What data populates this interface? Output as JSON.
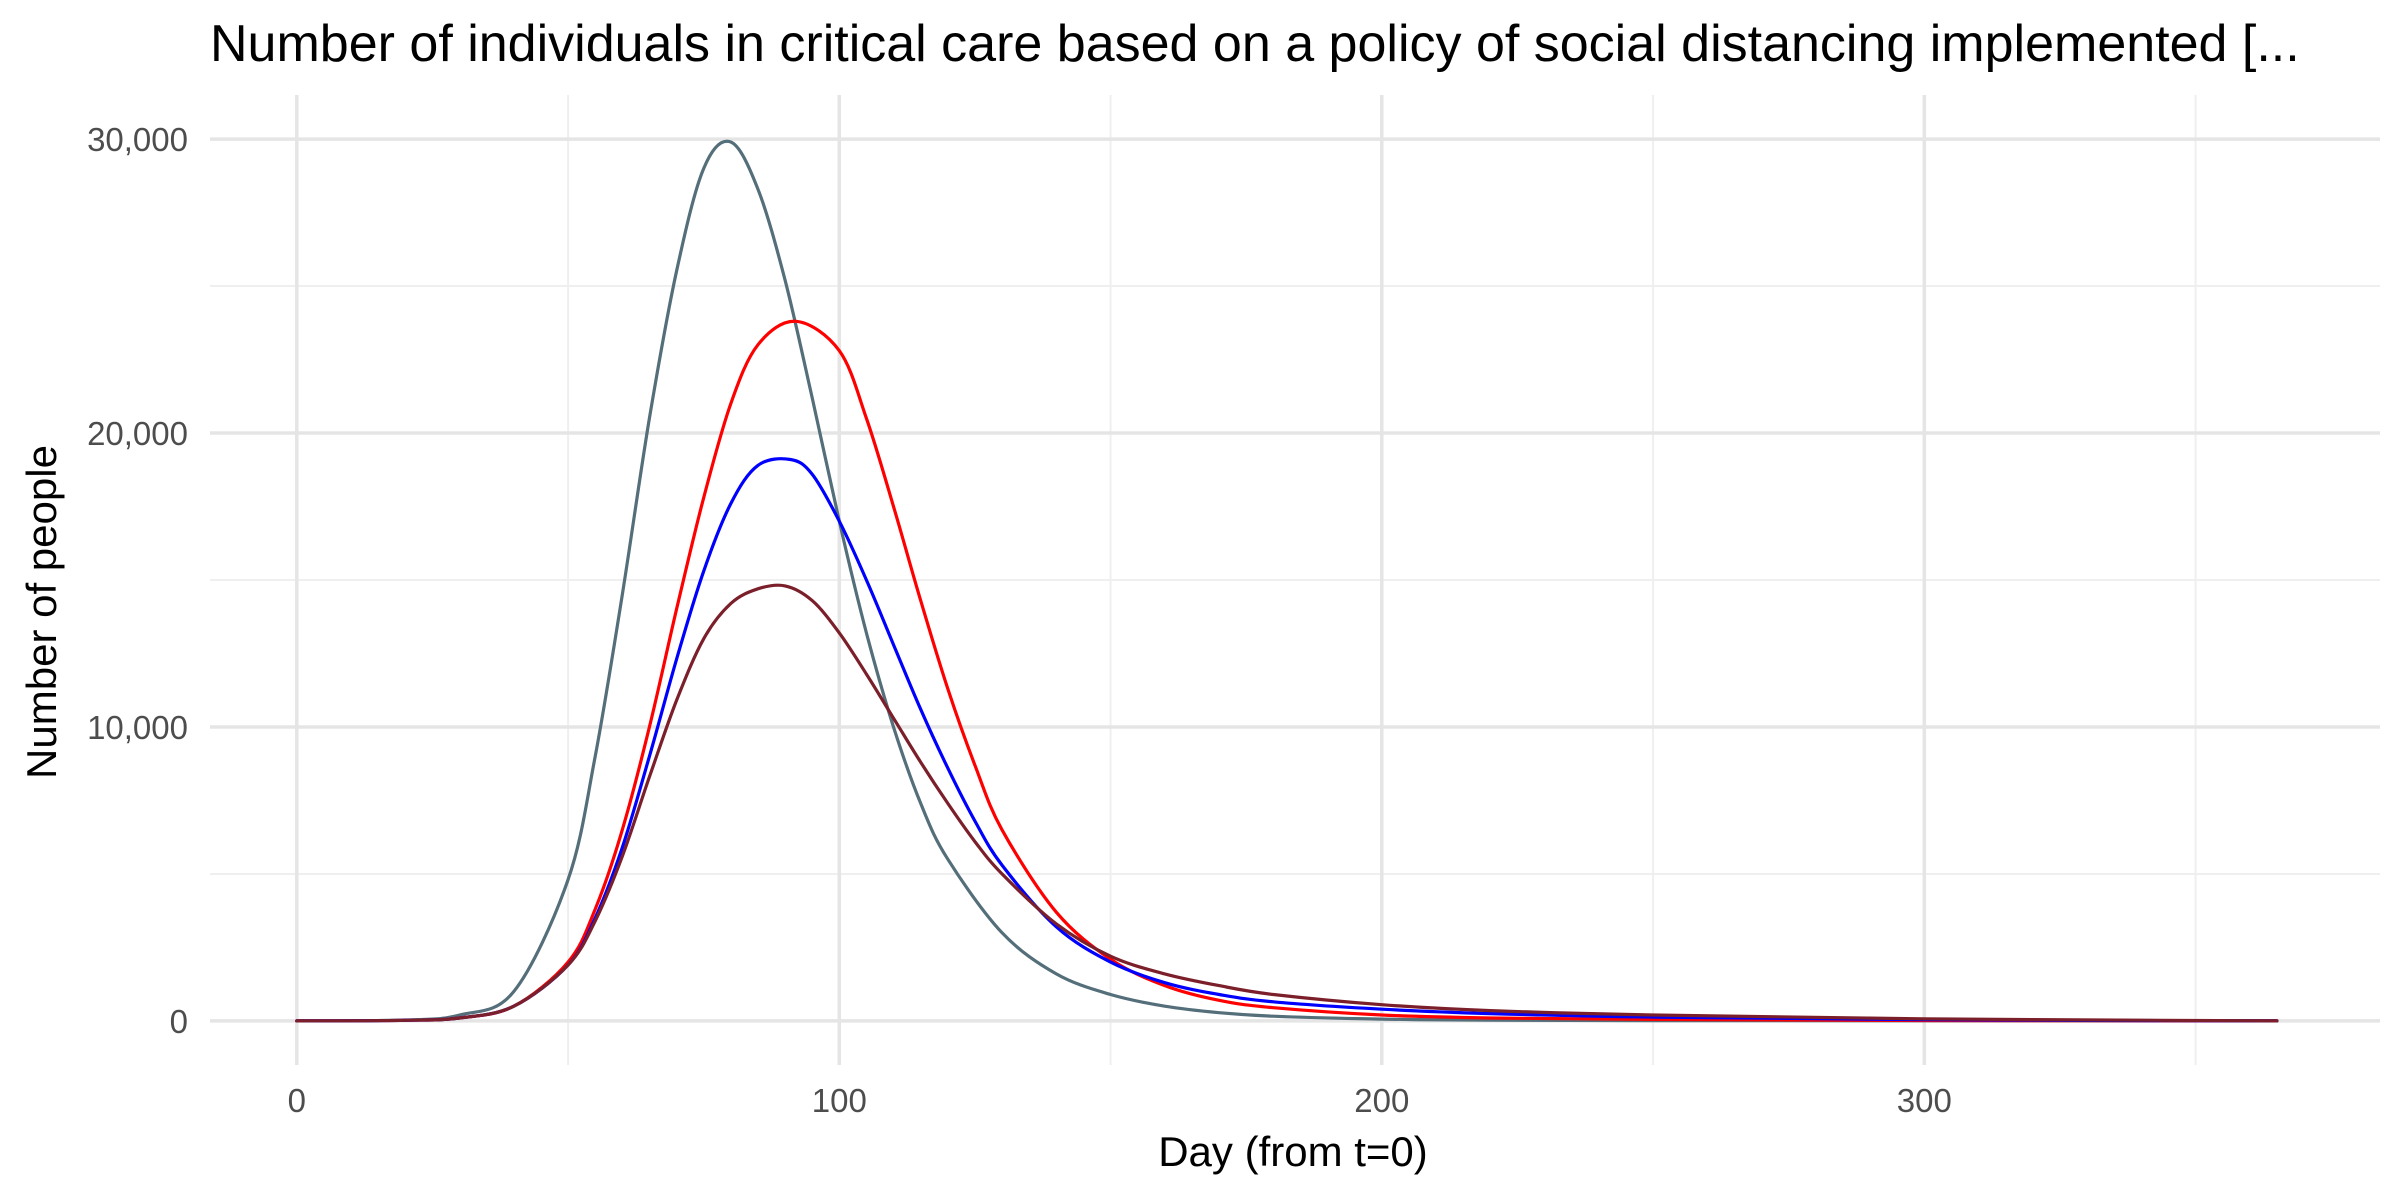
{
  "chart_data": {
    "type": "line",
    "title": "Number of individuals in critical care based on a policy of social distancing implemented [...",
    "xlabel": "Day (from t=0)",
    "ylabel": "Number of people",
    "xlim": [
      -16,
      384
    ],
    "ylim": [
      -1500,
      31500
    ],
    "x_ticks": [
      0,
      100,
      200,
      300
    ],
    "x_tick_labels": [
      "0",
      "100",
      "200",
      "300"
    ],
    "y_ticks": [
      0,
      10000,
      20000,
      30000
    ],
    "y_tick_labels": [
      "0",
      "10,000",
      "20,000",
      "30,000"
    ],
    "grid": true,
    "legend": "none",
    "series": [
      {
        "color": "#546e7a",
        "x": [
          0,
          20,
          30,
          40,
          50,
          55,
          60,
          65,
          70,
          75,
          80,
          85,
          90,
          95,
          100,
          105,
          110,
          115,
          120,
          130,
          140,
          150,
          160,
          170,
          180,
          200,
          220,
          250,
          300,
          365
        ],
        "values": [
          0,
          30,
          200,
          1000,
          4800,
          9000,
          14500,
          20500,
          25500,
          29000,
          29900,
          28300,
          25200,
          21200,
          17000,
          13200,
          10000,
          7400,
          5500,
          3000,
          1600,
          900,
          500,
          280,
          160,
          60,
          25,
          10,
          5,
          0
        ]
      },
      {
        "color": "#ff0000",
        "x": [
          0,
          20,
          30,
          40,
          50,
          55,
          60,
          65,
          70,
          75,
          80,
          85,
          92,
          100,
          105,
          110,
          115,
          120,
          125,
          130,
          140,
          150,
          160,
          170,
          180,
          200,
          220,
          250,
          300,
          365
        ],
        "values": [
          0,
          20,
          100,
          500,
          2000,
          3800,
          6500,
          10000,
          14000,
          17800,
          21000,
          23000,
          23800,
          22800,
          20500,
          17500,
          14300,
          11300,
          8700,
          6500,
          3700,
          2100,
          1200,
          700,
          450,
          200,
          100,
          50,
          15,
          0
        ]
      },
      {
        "color": "#0000ff",
        "x": [
          0,
          20,
          30,
          40,
          50,
          55,
          60,
          65,
          70,
          75,
          80,
          85,
          91,
          95,
          100,
          105,
          110,
          115,
          120,
          125,
          130,
          140,
          150,
          160,
          170,
          180,
          200,
          220,
          250,
          300,
          365
        ],
        "values": [
          0,
          20,
          100,
          500,
          1900,
          3500,
          5900,
          9000,
          12300,
          15300,
          17600,
          18900,
          19100,
          18600,
          17000,
          15000,
          12800,
          10600,
          8600,
          6800,
          5300,
          3200,
          2000,
          1300,
          900,
          650,
          400,
          250,
          130,
          40,
          0
        ]
      },
      {
        "color": "#7b1f2a",
        "x": [
          0,
          20,
          30,
          40,
          50,
          55,
          60,
          65,
          70,
          75,
          80,
          85,
          90,
          95,
          100,
          105,
          110,
          115,
          120,
          125,
          130,
          140,
          150,
          160,
          170,
          180,
          200,
          220,
          250,
          300,
          365
        ],
        "values": [
          0,
          20,
          100,
          500,
          1900,
          3400,
          5600,
          8300,
          10900,
          13000,
          14200,
          14700,
          14800,
          14300,
          13200,
          11800,
          10300,
          8800,
          7400,
          6100,
          5000,
          3300,
          2200,
          1600,
          1200,
          900,
          550,
          350,
          200,
          70,
          0
        ]
      }
    ]
  }
}
